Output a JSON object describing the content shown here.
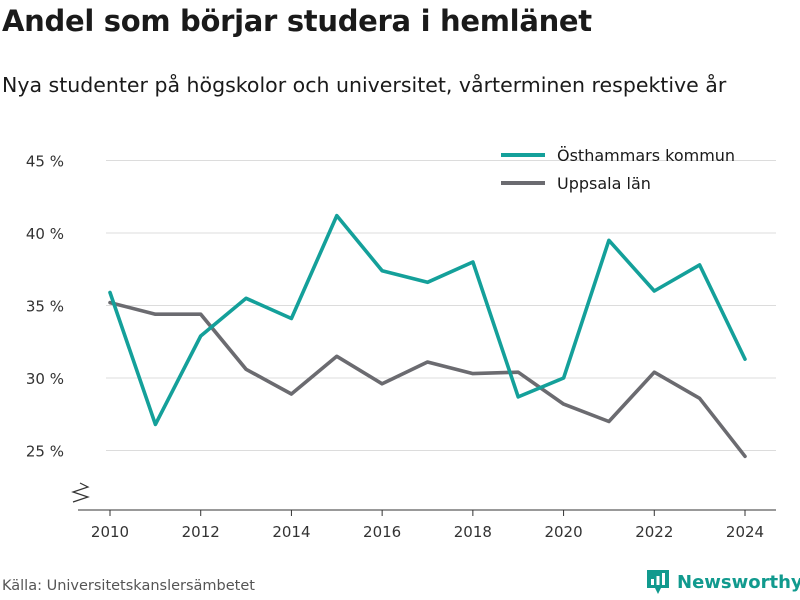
{
  "title": "Andel som börjar studera i hemlänet",
  "subtitle": "Nya studenter på högskolor och universitet, vårterminen respektive år",
  "source": "Källa: Universitetskanslersämbetet",
  "brand": {
    "name": "Newsworthy",
    "icon": "newsworthy-logo-icon",
    "color": "#119a8e"
  },
  "chart_data": {
    "type": "line",
    "title": "",
    "xlabel": "",
    "ylabel": "",
    "x": [
      2010,
      2011,
      2012,
      2013,
      2014,
      2015,
      2016,
      2017,
      2018,
      2019,
      2020,
      2021,
      2022,
      2023,
      2024
    ],
    "series": [
      {
        "name": "Östhammars kommun",
        "color": "#14a09a",
        "values": [
          35.9,
          26.8,
          32.9,
          35.5,
          34.1,
          41.2,
          37.4,
          36.6,
          38.0,
          28.7,
          30.0,
          39.5,
          36.0,
          37.8,
          31.3
        ]
      },
      {
        "name": "Uppsala län",
        "color": "#6b6b70",
        "values": [
          35.2,
          34.4,
          34.4,
          30.6,
          28.9,
          31.5,
          29.6,
          31.1,
          30.3,
          30.4,
          28.2,
          27.0,
          30.4,
          28.6,
          24.6
        ]
      }
    ],
    "xticks": [
      "2010",
      "2012",
      "2014",
      "2016",
      "2018",
      "2020",
      "2022",
      "2024"
    ],
    "yticks": [
      {
        "value": 25,
        "label": "25 %"
      },
      {
        "value": 30,
        "label": "30 %"
      },
      {
        "value": 35,
        "label": "35 %"
      },
      {
        "value": 40,
        "label": "40 %"
      },
      {
        "value": 45,
        "label": "45 %"
      }
    ],
    "xlim": [
      2010,
      2024
    ],
    "ylim": [
      21,
      45
    ],
    "axis_break": true,
    "grid": "horizontal",
    "legend": "top-right"
  }
}
